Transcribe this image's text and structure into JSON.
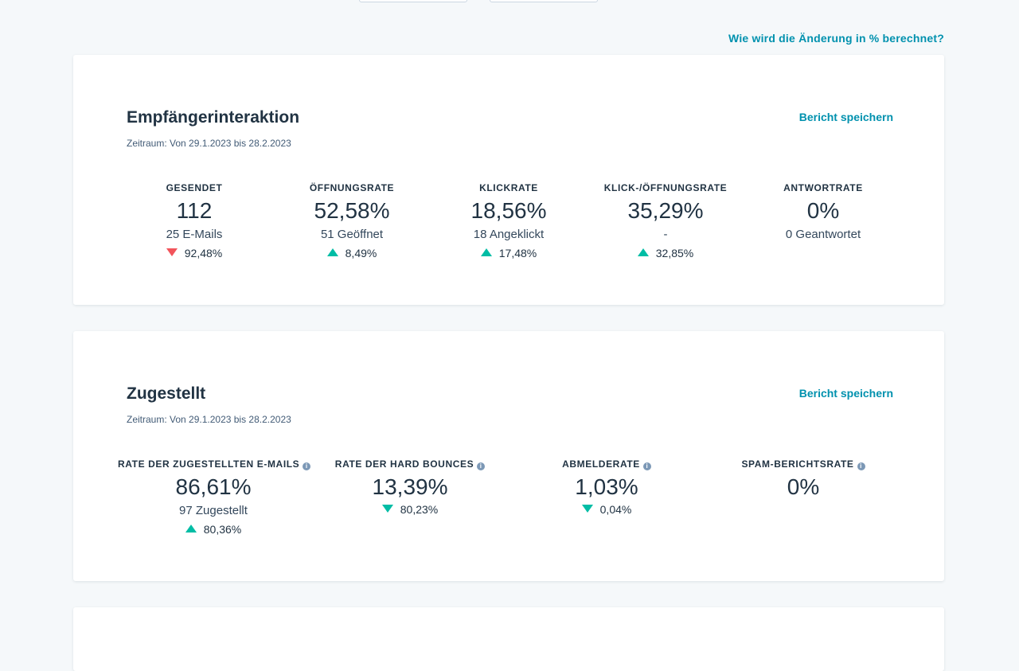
{
  "help_link": "Wie wird die Änderung in % berechnet?",
  "engagement": {
    "title": "Empfängerinteraktion",
    "range": "Zeitraum: Von 29.1.2023 bis 28.2.2023",
    "save": "Bericht speichern",
    "metrics": [
      {
        "label": "GESENDET",
        "value": "112",
        "sub": "25 E-Mails",
        "change": "92,48%",
        "direction": "down",
        "color": "#f2545b"
      },
      {
        "label": "ÖFFNUNGSRATE",
        "value": "52,58%",
        "sub": "51 Geöffnet",
        "change": "8,49%",
        "direction": "up",
        "color": "#00bda5"
      },
      {
        "label": "KLICKRATE",
        "value": "18,56%",
        "sub": "18 Angeklickt",
        "change": "17,48%",
        "direction": "up",
        "color": "#00bda5"
      },
      {
        "label": "KLICK-/ÖFFNUNGSRATE",
        "value": "35,29%",
        "sub": "-",
        "change": "32,85%",
        "direction": "up",
        "color": "#00bda5"
      },
      {
        "label": "ANTWORTRATE",
        "value": "0%",
        "sub": "0 Geantwortet",
        "change": "",
        "direction": "none"
      }
    ]
  },
  "delivered": {
    "title": "Zugestellt",
    "range": "Zeitraum: Von 29.1.2023 bis 28.2.2023",
    "save": "Bericht speichern",
    "metrics": [
      {
        "label": "RATE DER ZUGESTELLTEN E-MAILS",
        "value": "86,61%",
        "sub": "97 Zugestellt",
        "change": "80,36%",
        "direction": "up",
        "color": "#00bda5"
      },
      {
        "label": "RATE DER HARD BOUNCES",
        "value": "13,39%",
        "sub": "",
        "change": "80,23%",
        "direction": "down",
        "color": "#00bda5"
      },
      {
        "label": "ABMELDERATE",
        "value": "1,03%",
        "sub": "",
        "change": "0,04%",
        "direction": "down",
        "color": "#00bda5"
      },
      {
        "label": "SPAM-BERICHTSRATE",
        "value": "0%",
        "sub": "",
        "change": "",
        "direction": "none"
      }
    ]
  },
  "info_icon": "i"
}
